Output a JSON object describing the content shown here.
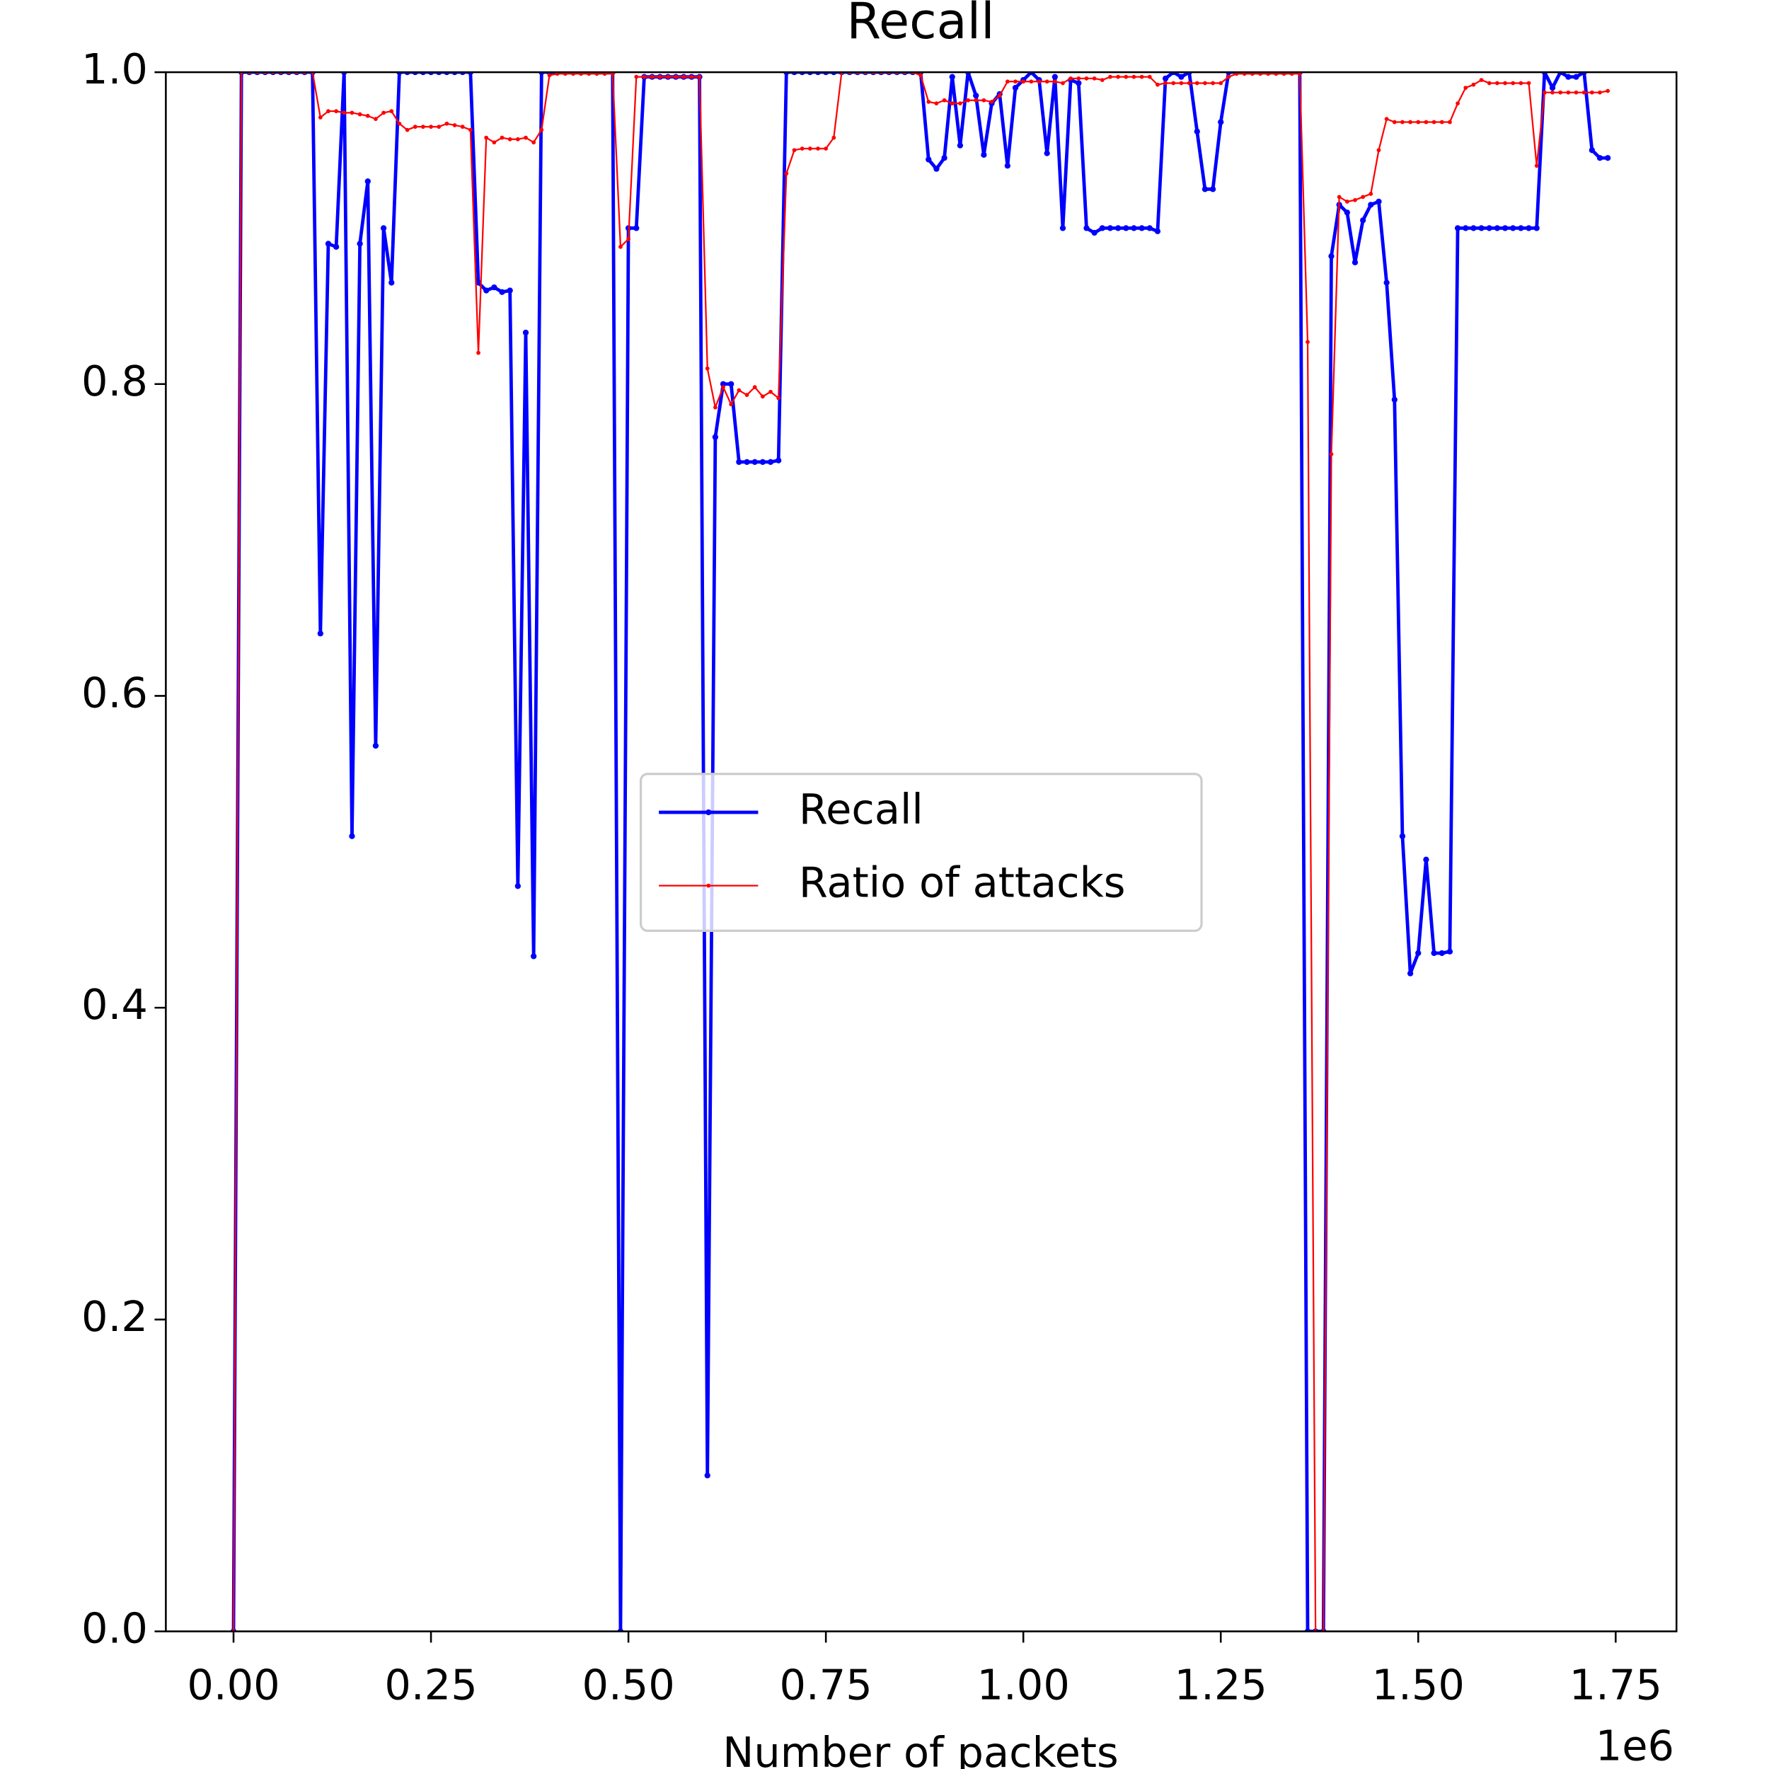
{
  "chart_data": {
    "type": "line",
    "title": "Recall",
    "xlabel": "Number of packets",
    "x_offset_label": "1e6",
    "xlim": [
      -85700,
      1827000
    ],
    "ylim": [
      0,
      1
    ],
    "xticks": [
      {
        "value": 0,
        "label": "0.00"
      },
      {
        "value": 250000,
        "label": "0.25"
      },
      {
        "value": 500000,
        "label": "0.50"
      },
      {
        "value": 750000,
        "label": "0.75"
      },
      {
        "value": 1000000,
        "label": "1.00"
      },
      {
        "value": 1250000,
        "label": "1.25"
      },
      {
        "value": 1500000,
        "label": "1.50"
      },
      {
        "value": 1750000,
        "label": "1.75"
      }
    ],
    "yticks": [
      {
        "value": 0,
        "label": "0.0"
      },
      0.2,
      0.4,
      0.6,
      0.8,
      {
        "value": 1,
        "label": "1.0"
      }
    ],
    "legend": "center",
    "x": [
      0,
      10000,
      20000,
      30000,
      40000,
      50000,
      60000,
      70000,
      80000,
      90000,
      100000,
      110000,
      120000,
      130000,
      140000,
      150000,
      160000,
      170000,
      180000,
      190000,
      200000,
      210000,
      220000,
      230000,
      240000,
      250000,
      260000,
      270000,
      280000,
      290000,
      300000,
      310000,
      320000,
      330000,
      340000,
      350000,
      360000,
      370000,
      380000,
      390000,
      400000,
      410000,
      420000,
      430000,
      440000,
      450000,
      460000,
      470000,
      480000,
      490000,
      500000,
      510000,
      520000,
      530000,
      540000,
      550000,
      560000,
      570000,
      580000,
      590000,
      600000,
      610000,
      620000,
      630000,
      640000,
      650000,
      660000,
      670000,
      680000,
      690000,
      700000,
      710000,
      720000,
      730000,
      740000,
      750000,
      760000,
      770000,
      780000,
      790000,
      800000,
      810000,
      820000,
      830000,
      840000,
      850000,
      860000,
      870000,
      880000,
      890000,
      900000,
      910000,
      920000,
      930000,
      940000,
      950000,
      960000,
      970000,
      980000,
      990000,
      1000000,
      1010000,
      1020000,
      1030000,
      1040000,
      1050000,
      1060000,
      1070000,
      1080000,
      1090000,
      1100000,
      1110000,
      1120000,
      1130000,
      1140000,
      1150000,
      1160000,
      1170000,
      1180000,
      1190000,
      1200000,
      1210000,
      1220000,
      1230000,
      1240000,
      1250000,
      1260000,
      1270000,
      1280000,
      1290000,
      1300000,
      1310000,
      1320000,
      1330000,
      1340000,
      1350000,
      1360000,
      1370000,
      1380000,
      1390000,
      1400000,
      1410000,
      1420000,
      1430000,
      1440000,
      1450000,
      1460000,
      1470000,
      1480000,
      1490000,
      1500000,
      1510000,
      1520000,
      1530000,
      1540000,
      1550000,
      1560000,
      1570000,
      1580000,
      1590000,
      1600000,
      1610000,
      1620000,
      1630000,
      1640000,
      1650000,
      1660000,
      1670000,
      1680000,
      1690000,
      1700000,
      1710000,
      1720000,
      1730000,
      1740000
    ],
    "series": [
      {
        "name": "Recall",
        "color": "#0000ff",
        "values": [
          0,
          1,
          1,
          1,
          1,
          1,
          1,
          1,
          1,
          1,
          1,
          0.64,
          0.89,
          0.888,
          1,
          0.51,
          0.89,
          0.93,
          0.568,
          0.9,
          0.865,
          1,
          1,
          1,
          1,
          1,
          1,
          1,
          1,
          1,
          1,
          0.865,
          0.86,
          0.862,
          0.859,
          0.86,
          0.478,
          0.833,
          0.433,
          1,
          1,
          1,
          1,
          1,
          1,
          1,
          1,
          1,
          1,
          0,
          0.9,
          0.9,
          0.997,
          0.997,
          0.997,
          0.997,
          0.997,
          0.997,
          0.997,
          0.997,
          0.1,
          0.766,
          0.8,
          0.8,
          0.75,
          0.75,
          0.75,
          0.75,
          0.75,
          0.751,
          1,
          1,
          1,
          1,
          1,
          1,
          1,
          1,
          1,
          1,
          1,
          1,
          1,
          1,
          1,
          1,
          1,
          1,
          0.944,
          0.938,
          0.945,
          0.997,
          0.953,
          1,
          0.985,
          0.947,
          0.98,
          0.986,
          0.94,
          0.99,
          0.995,
          1,
          0.995,
          0.948,
          0.997,
          0.9,
          0.995,
          0.993,
          0.9,
          0.897,
          0.9,
          0.9,
          0.9,
          0.9,
          0.9,
          0.9,
          0.9,
          0.898,
          0.996,
          1,
          0.997,
          1,
          0.962,
          0.925,
          0.925,
          0.968,
          1,
          1,
          1,
          1,
          1,
          1,
          1,
          1,
          1,
          1,
          0,
          0,
          0,
          0.882,
          0.915,
          0.91,
          0.878,
          0.905,
          0.915,
          0.917,
          0.865,
          0.79,
          0.51,
          0.422,
          0.435,
          0.495,
          0.435,
          0.435,
          0.436,
          0.9,
          0.9,
          0.9,
          0.9,
          0.9,
          0.9,
          0.9,
          0.9,
          0.9,
          0.9,
          0.9,
          1,
          0.99,
          1,
          0.997,
          0.997,
          1,
          0.95,
          0.945,
          0.945
        ]
      },
      {
        "name": "Ratio of attacks",
        "color": "#ff0000",
        "values": [
          0,
          1,
          1,
          1,
          1,
          1,
          1,
          1,
          1,
          1,
          1,
          0.971,
          0.975,
          0.975,
          0.974,
          0.974,
          0.973,
          0.972,
          0.97,
          0.974,
          0.975,
          0.967,
          0.963,
          0.965,
          0.965,
          0.965,
          0.965,
          0.967,
          0.966,
          0.965,
          0.963,
          0.82,
          0.958,
          0.955,
          0.958,
          0.957,
          0.957,
          0.958,
          0.955,
          0.963,
          0.998,
          0.999,
          0.999,
          0.999,
          0.999,
          0.999,
          0.999,
          0.999,
          0.999,
          0.888,
          0.893,
          0.997,
          0.997,
          0.997,
          0.997,
          0.997,
          0.997,
          0.997,
          0.997,
          0.997,
          0.81,
          0.785,
          0.798,
          0.787,
          0.796,
          0.793,
          0.798,
          0.792,
          0.795,
          0.791,
          0.935,
          0.95,
          0.951,
          0.951,
          0.951,
          0.951,
          0.958,
          1,
          1,
          1,
          1,
          1,
          1,
          1,
          1,
          1,
          1,
          0.998,
          0.981,
          0.98,
          0.982,
          0.98,
          0.98,
          0.982,
          0.982,
          0.982,
          0.981,
          0.985,
          0.994,
          0.994,
          0.994,
          0.994,
          0.994,
          0.994,
          0.994,
          0.993,
          0.996,
          0.996,
          0.996,
          0.996,
          0.995,
          0.997,
          0.997,
          0.997,
          0.997,
          0.997,
          0.997,
          0.992,
          0.993,
          0.993,
          0.993,
          0.993,
          0.993,
          0.993,
          0.993,
          0.993,
          0.997,
          0.999,
          0.999,
          0.999,
          0.999,
          0.999,
          0.999,
          0.999,
          0.999,
          0.999,
          0.827,
          0,
          0,
          0.755,
          0.92,
          0.917,
          0.918,
          0.92,
          0.922,
          0.95,
          0.97,
          0.968,
          0.968,
          0.968,
          0.968,
          0.968,
          0.968,
          0.968,
          0.968,
          0.98,
          0.99,
          0.992,
          0.995,
          0.993,
          0.993,
          0.993,
          0.993,
          0.993,
          0.993,
          0.94,
          0.987,
          0.987,
          0.987,
          0.987,
          0.987,
          0.987,
          0.987,
          0.987,
          0.988
        ]
      }
    ]
  }
}
